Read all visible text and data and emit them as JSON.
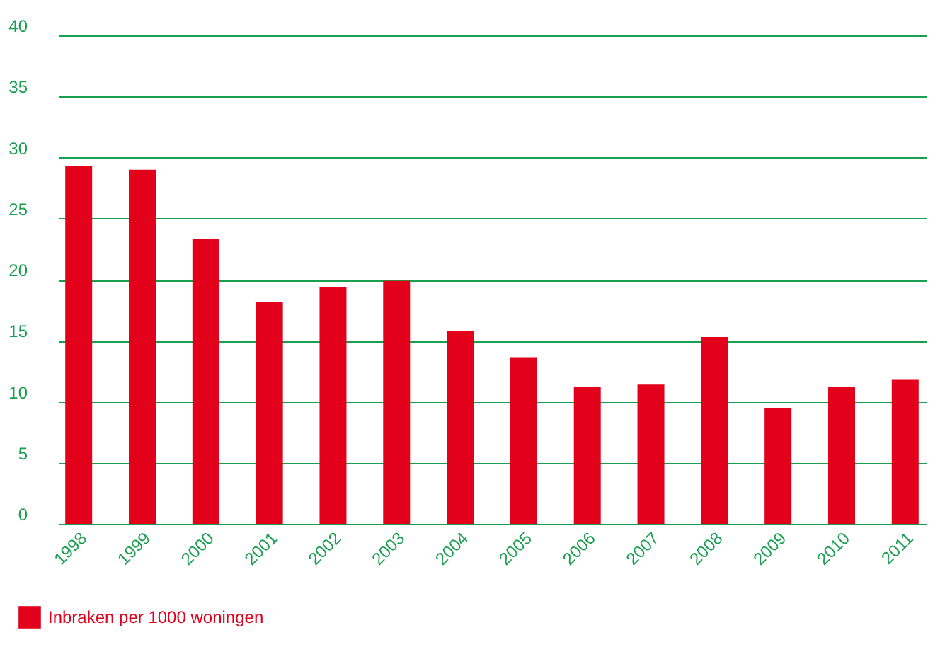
{
  "chart_data": {
    "type": "bar",
    "categories": [
      "1998",
      "1999",
      "2000",
      "2001",
      "2002",
      "2003",
      "2004",
      "2005",
      "2006",
      "2007",
      "2008",
      "2009",
      "2010",
      "2011"
    ],
    "series": [
      {
        "name": "Inbraken per 1000 woningen",
        "color": "#e3001b",
        "values": [
          29.3,
          29.0,
          23.3,
          18.2,
          19.4,
          19.9,
          15.8,
          13.6,
          11.2,
          11.4,
          15.3,
          9.5,
          11.2,
          11.8
        ]
      }
    ],
    "ylim": [
      0,
      40
    ],
    "yticks": [
      0,
      5,
      10,
      15,
      20,
      25,
      30,
      35,
      40
    ],
    "grid": "y",
    "legend": "bottom left"
  }
}
